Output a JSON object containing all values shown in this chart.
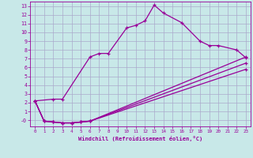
{
  "xlabel": "Windchill (Refroidissement éolien,°C)",
  "background_color": "#c8e8e8",
  "grid_color": "#aaaacc",
  "line_color": "#990099",
  "xlim": [
    -0.5,
    23.5
  ],
  "ylim": [
    -0.7,
    13.5
  ],
  "xticks": [
    0,
    1,
    2,
    3,
    4,
    5,
    6,
    7,
    8,
    9,
    10,
    11,
    12,
    13,
    14,
    15,
    16,
    17,
    18,
    19,
    20,
    21,
    22,
    23
  ],
  "yticks": [
    0,
    1,
    2,
    3,
    4,
    5,
    6,
    7,
    8,
    9,
    10,
    11,
    12,
    13
  ],
  "ytick_labels": [
    "-0",
    "1",
    "2",
    "3",
    "4",
    "5",
    "6",
    "7",
    "8",
    "9",
    "10",
    "11",
    "12",
    "13"
  ],
  "line1_x": [
    0,
    2,
    3,
    6,
    7,
    8,
    10,
    11,
    12,
    13,
    14,
    16,
    18,
    19,
    20,
    22,
    23
  ],
  "line1_y": [
    2.2,
    2.4,
    2.4,
    7.2,
    7.6,
    7.6,
    10.5,
    10.8,
    11.3,
    13.1,
    12.2,
    11.1,
    9.0,
    8.5,
    8.5,
    8.0,
    7.1
  ],
  "line2_x": [
    0,
    1,
    2,
    3,
    4,
    5,
    6,
    23
  ],
  "line2_y": [
    2.2,
    -0.1,
    -0.2,
    -0.3,
    -0.3,
    -0.2,
    -0.1,
    7.2
  ],
  "line3_x": [
    0,
    1,
    2,
    3,
    4,
    5,
    6,
    23
  ],
  "line3_y": [
    2.2,
    -0.1,
    -0.2,
    -0.3,
    -0.3,
    -0.2,
    -0.1,
    6.5
  ],
  "line4_x": [
    0,
    1,
    2,
    3,
    4,
    5,
    6,
    23
  ],
  "line4_y": [
    2.2,
    -0.1,
    -0.2,
    -0.3,
    -0.3,
    -0.2,
    -0.1,
    5.8
  ]
}
